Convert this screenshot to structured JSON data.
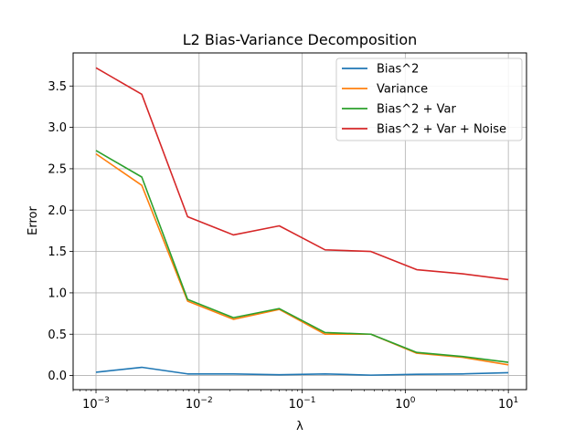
{
  "chart_data": {
    "type": "line",
    "title": "L2 Bias-Variance Decomposition",
    "xlabel": "λ",
    "ylabel": "Error",
    "xscale": "log",
    "xlim": [
      0.0006,
      15
    ],
    "ylim": [
      -0.17,
      3.9
    ],
    "grid": true,
    "legend_position": "top-right",
    "x": [
      0.001,
      0.00278,
      0.00774,
      0.02154,
      0.05995,
      0.1668,
      0.4642,
      1.2915,
      3.594,
      10.0
    ],
    "series": [
      {
        "name": "Bias^2",
        "color": "#1f77b4",
        "values": [
          0.04,
          0.1,
          0.02,
          0.02,
          0.01,
          0.02,
          0.005,
          0.015,
          0.02,
          0.035
        ]
      },
      {
        "name": "Variance",
        "color": "#ff7f0e",
        "values": [
          2.68,
          2.3,
          0.9,
          0.68,
          0.8,
          0.5,
          0.5,
          0.27,
          0.22,
          0.13
        ]
      },
      {
        "name": "Bias^2 + Var",
        "color": "#2ca02c",
        "values": [
          2.72,
          2.4,
          0.92,
          0.7,
          0.81,
          0.52,
          0.5,
          0.28,
          0.23,
          0.16
        ]
      },
      {
        "name": "Bias^2 + Var + Noise",
        "color": "#d62728",
        "values": [
          3.72,
          3.4,
          1.92,
          1.7,
          1.81,
          1.52,
          1.5,
          1.28,
          1.23,
          1.16
        ]
      }
    ],
    "yticks": [
      0.0,
      0.5,
      1.0,
      1.5,
      2.0,
      2.5,
      3.0,
      3.5
    ],
    "ytick_labels": [
      "0.0",
      "0.5",
      "1.0",
      "1.5",
      "2.0",
      "2.5",
      "3.0",
      "3.5"
    ],
    "xticks": [
      {
        "value": 0.001,
        "base": "10",
        "exp": "−3"
      },
      {
        "value": 0.01,
        "base": "10",
        "exp": "−2"
      },
      {
        "value": 0.1,
        "base": "10",
        "exp": "−1"
      },
      {
        "value": 1,
        "base": "10",
        "exp": "0"
      },
      {
        "value": 10,
        "base": "10",
        "exp": "1"
      }
    ]
  }
}
